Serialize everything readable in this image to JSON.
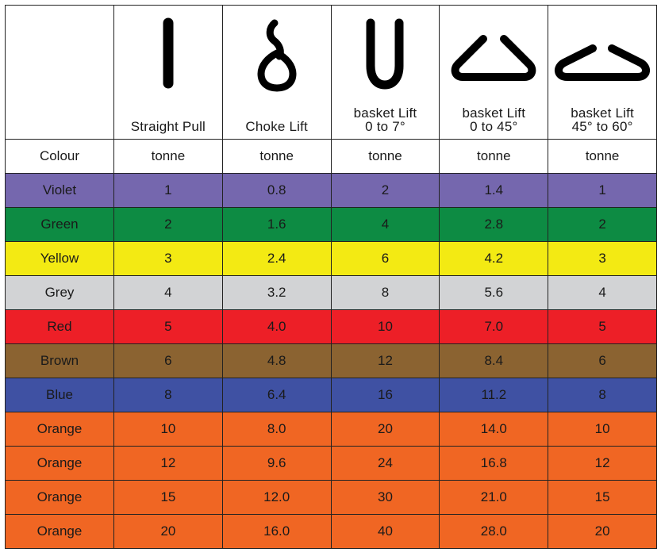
{
  "header": {
    "columns": [
      {
        "lines": [
          "Straight Pull"
        ],
        "icon": "straight-pull-icon"
      },
      {
        "lines": [
          "Choke Lift"
        ],
        "icon": "choke-lift-icon"
      },
      {
        "lines": [
          "basket Lift",
          "0 to 7°"
        ],
        "icon": "basket-vertical-icon"
      },
      {
        "lines": [
          "basket Lift",
          "0 to 45°"
        ],
        "icon": "basket-45-icon"
      },
      {
        "lines": [
          "basket Lift",
          "45° to 60°"
        ],
        "icon": "basket-60-icon"
      }
    ],
    "colour_label": "Colour",
    "unit": "tonne"
  },
  "rows": [
    {
      "colour": "Violet",
      "bg": "#7567ae",
      "values": [
        "1",
        "0.8",
        "2",
        "1.4",
        "1"
      ]
    },
    {
      "colour": "Green",
      "bg": "#0d8b43",
      "values": [
        "2",
        "1.6",
        "4",
        "2.8",
        "2"
      ]
    },
    {
      "colour": "Yellow",
      "bg": "#f3ea13",
      "values": [
        "3",
        "2.4",
        "6",
        "4.2",
        "3"
      ]
    },
    {
      "colour": "Grey",
      "bg": "#d2d3d5",
      "values": [
        "4",
        "3.2",
        "8",
        "5.6",
        "4"
      ]
    },
    {
      "colour": "Red",
      "bg": "#ed1f27",
      "values": [
        "5",
        "4.0",
        "10",
        "7.0",
        "5"
      ]
    },
    {
      "colour": "Brown",
      "bg": "#8b6331",
      "values": [
        "6",
        "4.8",
        "12",
        "8.4",
        "6"
      ]
    },
    {
      "colour": "Blue",
      "bg": "#3f51a3",
      "values": [
        "8",
        "6.4",
        "16",
        "11.2",
        "8"
      ]
    },
    {
      "colour": "Orange",
      "bg": "#f06623",
      "values": [
        "10",
        "8.0",
        "20",
        "14.0",
        "10"
      ]
    },
    {
      "colour": "Orange",
      "bg": "#f06623",
      "values": [
        "12",
        "9.6",
        "24",
        "16.8",
        "12"
      ]
    },
    {
      "colour": "Orange",
      "bg": "#f06623",
      "values": [
        "15",
        "12.0",
        "30",
        "21.0",
        "15"
      ]
    },
    {
      "colour": "Orange",
      "bg": "#f06623",
      "values": [
        "20",
        "16.0",
        "40",
        "28.0",
        "20"
      ]
    }
  ]
}
